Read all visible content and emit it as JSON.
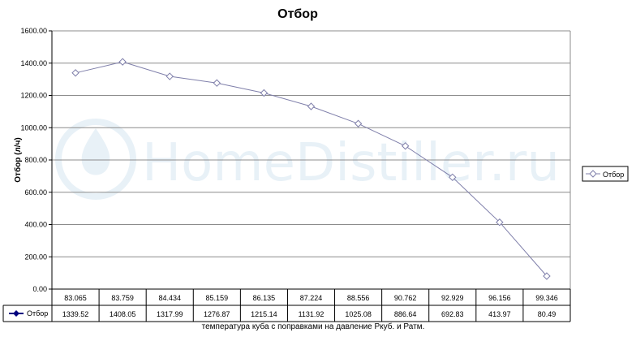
{
  "chart_data": {
    "type": "line",
    "title": "Отбор",
    "xlabel": "температура куба с поправками на давление Ркуб. и Ратм.",
    "ylabel": "Отбор (л/ч)",
    "ylim": [
      0,
      1600
    ],
    "y_ticks": [
      "0.00",
      "200.00",
      "400.00",
      "600.00",
      "800.00",
      "1000.00",
      "1200.00",
      "1400.00",
      "1600.00"
    ],
    "categories": [
      "83.065",
      "83.759",
      "84.434",
      "85.159",
      "86.135",
      "87.224",
      "88.556",
      "90.762",
      "92.929",
      "96.156",
      "99.346"
    ],
    "series": [
      {
        "name": "Отбор",
        "values": [
          1339.52,
          1408.05,
          1317.99,
          1276.87,
          1215.14,
          1131.92,
          1025.08,
          886.64,
          692.83,
          413.97,
          80.49
        ],
        "value_labels": [
          "1339.52",
          "1408.05",
          "1317.99",
          "1276.87",
          "1215.14",
          "1131.92",
          "1025.08",
          "886.64",
          "692.83",
          "413.97",
          "80.49"
        ]
      }
    ],
    "grid": true,
    "legend": "right",
    "data_table": true,
    "colors": {
      "line": "#7f7faa",
      "marker_fill": "#ffffff",
      "legend_key_line": "#000080",
      "grid": "#8c8c8c"
    }
  },
  "watermark": "HomeDistiller.ru"
}
